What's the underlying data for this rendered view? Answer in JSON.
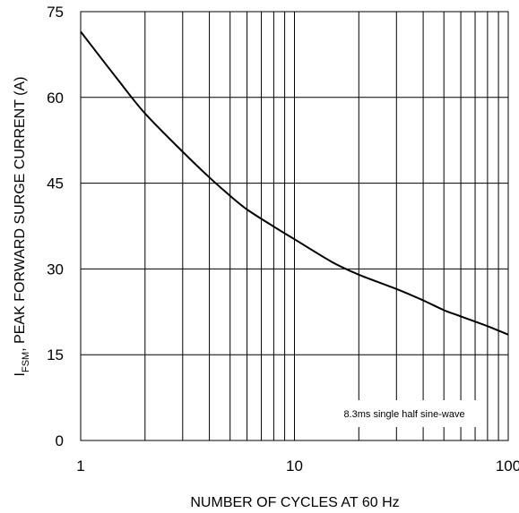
{
  "chart_data": {
    "type": "line",
    "xlabel": "NUMBER OF CYCLES AT 60 Hz",
    "ylabel_sub": "FSM",
    "ylabel_main": ", PEAK FORWARD SURGE CURRENT (A)",
    "ylabel_prefix": "I",
    "x_scale": "log",
    "xlim": [
      1,
      100
    ],
    "ylim": [
      0,
      75
    ],
    "x_ticks": [
      1,
      10,
      100
    ],
    "x_tick_labels": [
      "1",
      "10",
      "100"
    ],
    "y_ticks": [
      0,
      15,
      30,
      45,
      60,
      75
    ],
    "y_tick_labels": [
      "0",
      "15",
      "30",
      "45",
      "60",
      "75"
    ],
    "grid": true,
    "annotation": "8.3ms single half sine-wave",
    "series": [
      {
        "color": "#000000",
        "x": [
          1,
          1.5,
          2,
          3,
          4,
          5,
          6,
          8,
          10,
          15,
          20,
          30,
          40,
          50,
          60,
          80,
          100
        ],
        "y": [
          71.5,
          63.0,
          57.2,
          50.5,
          46.0,
          42.8,
          40.4,
          37.4,
          35.2,
          31.2,
          29.0,
          26.5,
          24.5,
          22.8,
          21.7,
          20.0,
          18.5
        ]
      }
    ]
  }
}
